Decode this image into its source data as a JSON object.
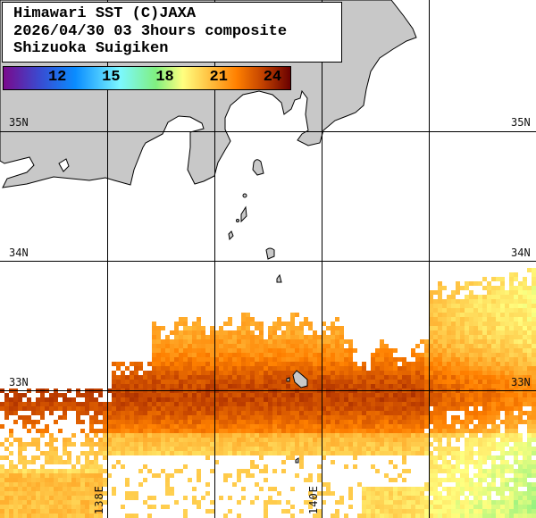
{
  "header": {
    "line1": "Himawari SST (C)JAXA",
    "line2": "2026/04/30 03 3hours composite",
    "line3": "Shizuoka Suigiken"
  },
  "colorbar": {
    "unit_range": [
      9,
      25
    ],
    "tick_labels": [
      "12",
      "15",
      "18",
      "21",
      "24"
    ],
    "tick_values": [
      12,
      15,
      18,
      21,
      24
    ],
    "stops": [
      {
        "v": 9,
        "color": "#7a0a8c"
      },
      {
        "v": 11,
        "color": "#3a4ad0"
      },
      {
        "v": 13,
        "color": "#0a8cff"
      },
      {
        "v": 15.5,
        "color": "#7cf8ff"
      },
      {
        "v": 17.5,
        "color": "#80f080"
      },
      {
        "v": 19,
        "color": "#ffff80"
      },
      {
        "v": 20.5,
        "color": "#ffc040"
      },
      {
        "v": 22,
        "color": "#ff8000"
      },
      {
        "v": 23.5,
        "color": "#c04000"
      },
      {
        "v": 25,
        "color": "#6a0000"
      }
    ]
  },
  "grid": {
    "lat_labels": [
      "35N",
      "34N",
      "33N"
    ],
    "lon_labels": [
      "138E",
      "140E"
    ]
  },
  "colors": {
    "land": "#c8c8c8",
    "coast": "#000000",
    "cloud": "#ffffff"
  }
}
